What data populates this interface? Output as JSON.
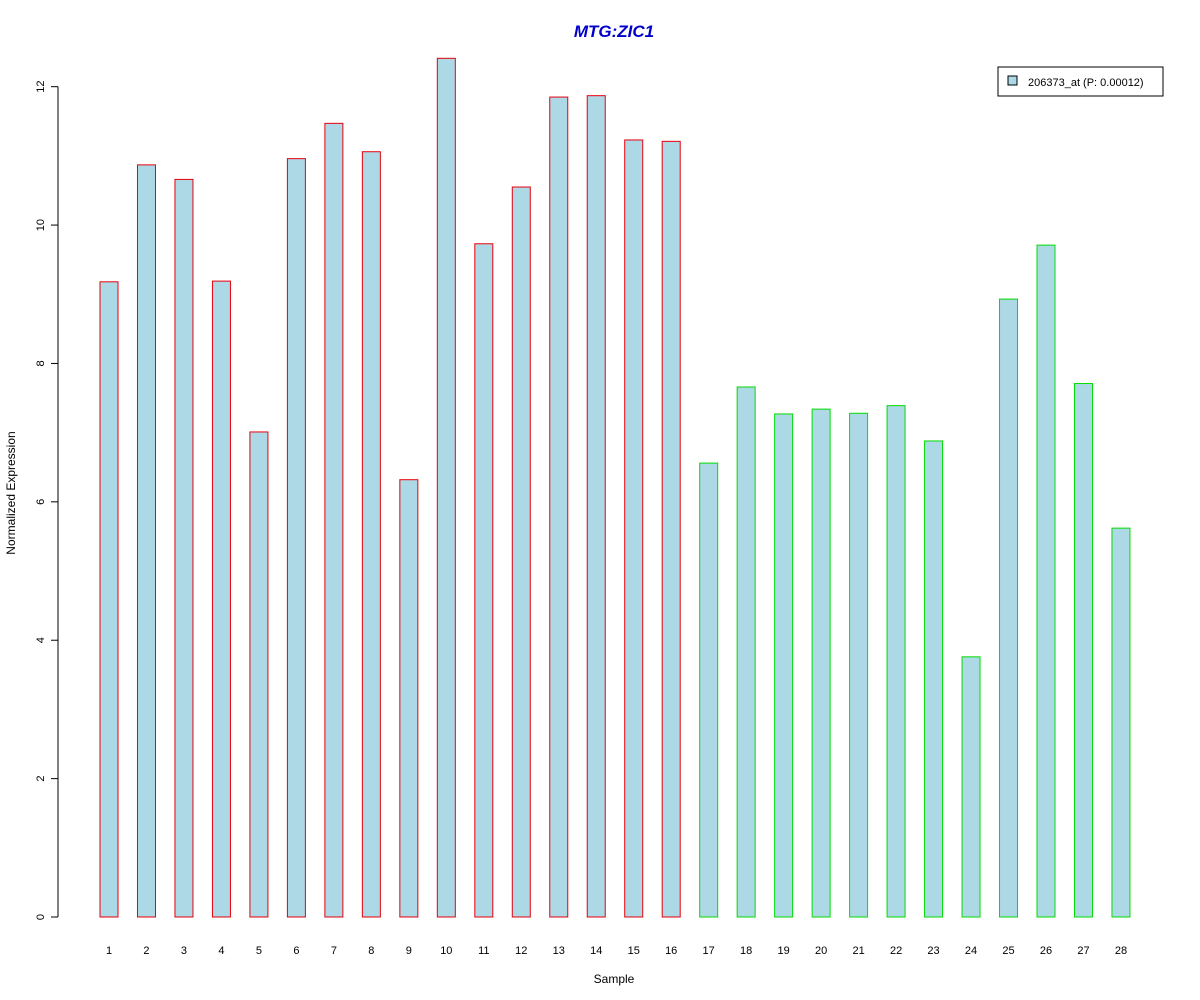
{
  "chart_data": {
    "type": "bar",
    "title": "MTG:ZIC1",
    "xlabel": "Sample",
    "ylabel": "Normalized Expression",
    "ylim": [
      0,
      12.4
    ],
    "yticks": [
      0,
      2,
      4,
      6,
      8,
      10,
      12
    ],
    "categories": [
      "1",
      "2",
      "3",
      "4",
      "5",
      "6",
      "7",
      "8",
      "9",
      "10",
      "11",
      "12",
      "13",
      "14",
      "15",
      "16",
      "17",
      "18",
      "19",
      "20",
      "21",
      "22",
      "23",
      "24",
      "25",
      "26",
      "27",
      "28"
    ],
    "series": [
      {
        "name": "206373_at (P: 0.00012)",
        "values": [
          9.18,
          10.87,
          10.66,
          9.19,
          7.01,
          10.96,
          11.47,
          11.06,
          6.32,
          12.41,
          9.73,
          10.55,
          11.85,
          11.87,
          11.23,
          11.21,
          6.56,
          7.66,
          7.27,
          7.34,
          7.28,
          7.39,
          6.88,
          3.76,
          8.93,
          9.71,
          7.71,
          5.62
        ]
      }
    ],
    "groups": [
      {
        "from": 1,
        "to": 16,
        "border_color": "#e8000b"
      },
      {
        "from": 17,
        "to": 28,
        "border_color": "#00dd00"
      }
    ],
    "bar_fill": "#add8e6",
    "title_color": "#0000cc",
    "legend_placement": "top-right",
    "grid": false
  }
}
